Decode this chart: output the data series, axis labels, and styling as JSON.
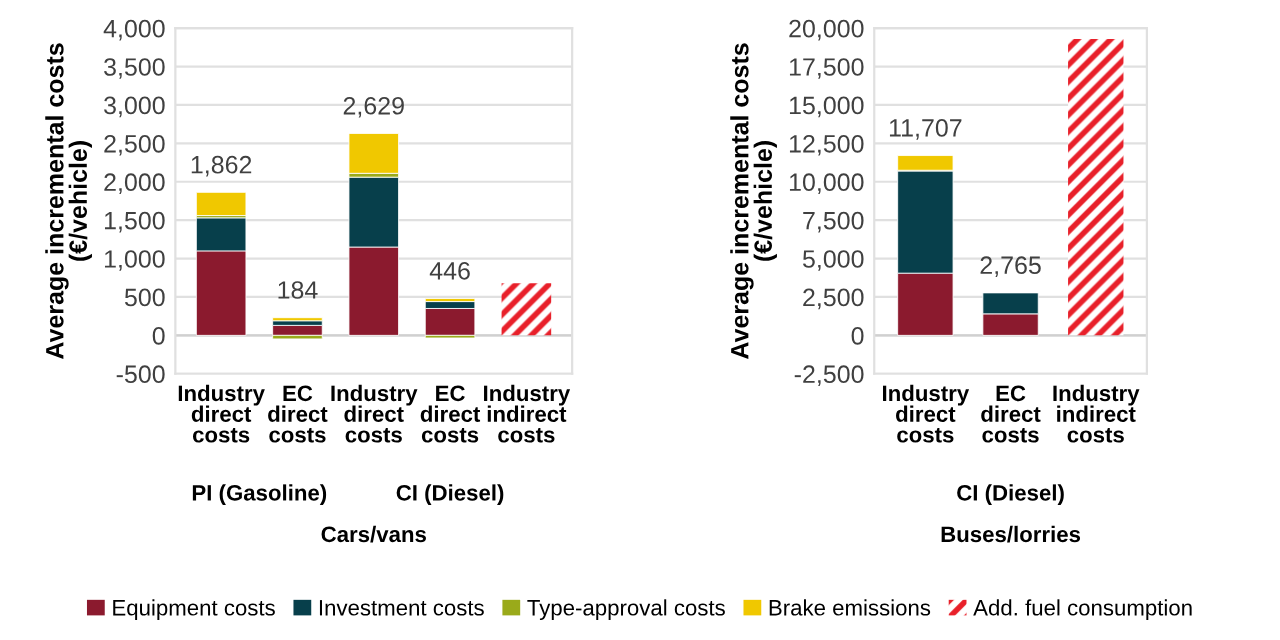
{
  "chart_data": [
    {
      "type": "bar",
      "stacked": true,
      "ylabel": "Average incremental costs\n(€/vehicle)",
      "categories": [
        "Industry\ndirect\ncosts",
        "EC\ndirect\ncosts",
        "Industry\ndirect\ncosts",
        "EC\ndirect\ncosts",
        "Industry\nindirect\ncosts"
      ],
      "series": [
        {
          "name": "Equipment costs",
          "color": "#8b1a2e",
          "values": [
            1100,
            130,
            1150,
            350,
            null
          ]
        },
        {
          "name": "Investment costs",
          "color": "#073f4b",
          "values": [
            430,
            60,
            910,
            90,
            null
          ]
        },
        {
          "name": "Type-approval costs",
          "color": "#9aaa1a",
          "values": [
            30,
            -46,
            50,
            -34,
            null
          ]
        },
        {
          "name": "Brake emissions",
          "color": "#f0c800",
          "values": [
            302,
            40,
            519,
            40,
            null
          ]
        },
        {
          "name": "Add. fuel consumption",
          "color": "#e8202a",
          "values": [
            null,
            null,
            null,
            null,
            680
          ]
        }
      ],
      "totals": [
        "1,862",
        "184",
        "2,629",
        "446",
        null
      ],
      "ylim": [
        -500,
        4000
      ],
      "yticks": [
        {
          "value": -500,
          "label": "-500"
        },
        0,
        500,
        {
          "value": 1000,
          "label": "1,000"
        },
        {
          "value": 1500,
          "label": "1,500"
        },
        {
          "value": 2000,
          "label": "2,000"
        },
        {
          "value": 2500,
          "label": "2,500"
        },
        {
          "value": 3000,
          "label": "3,000"
        },
        {
          "value": 3500,
          "label": "3,500"
        },
        {
          "value": 4000,
          "label": "4,000"
        }
      ],
      "grid": "y",
      "legend": "bottom",
      "annotations": [
        "PI (Gasoline)",
        "CI (Diesel)",
        "Cars/vans"
      ]
    },
    {
      "type": "bar",
      "stacked": true,
      "ylabel": "Average incremental costs\n(€/vehicle)",
      "categories": [
        "Industry\ndirect\ncosts",
        "EC\ndirect\ncosts",
        "Industry\nindirect\ncosts"
      ],
      "series": [
        {
          "color": "#8b1a2e",
          "values": [
            4050,
            1400,
            null
          ]
        },
        {
          "color": "#073f4b",
          "values": [
            6650,
            1365,
            null
          ]
        },
        {
          "color": "#9aaa1a",
          "values": [
            50,
            null,
            null
          ]
        },
        {
          "color": "#f0c800",
          "values": [
            957,
            null,
            null
          ]
        },
        {
          "color": "#e8202a",
          "values": [
            null,
            null,
            19300
          ]
        }
      ],
      "totals": [
        "11,707",
        "2,765",
        null
      ],
      "ylim": [
        -2500,
        20000
      ],
      "yticks": [
        {
          "value": -2500,
          "label": "-2,500"
        },
        0,
        {
          "value": 2500,
          "label": "2,500"
        },
        {
          "value": 5000,
          "label": "5,000"
        },
        {
          "value": 7500,
          "label": "7,500"
        },
        {
          "value": 10000,
          "label": "10,000"
        },
        {
          "value": 12500,
          "label": "12,500"
        },
        {
          "value": 15000,
          "label": "15,000"
        },
        {
          "value": 17500,
          "label": "17,500"
        },
        {
          "value": 20000,
          "label": "20,000"
        }
      ],
      "grid": "y",
      "annotations": [
        "CI (Diesel)",
        "Buses/lorries"
      ]
    }
  ]
}
